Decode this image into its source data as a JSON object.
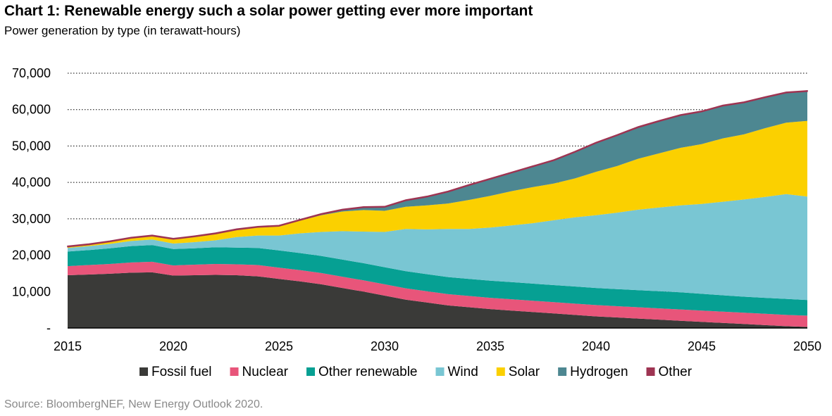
{
  "title": "Chart 1: Renewable energy such a solar power getting ever more important",
  "subtitle": "Power generation by type (in terawatt-hours)",
  "source": "Source: BloombergNEF, New Energy Outlook 2020.",
  "chart_data": {
    "type": "area",
    "stacked": true,
    "ylim": [
      0,
      70000
    ],
    "y_ticks": [
      0,
      10000,
      20000,
      30000,
      40000,
      50000,
      60000,
      70000
    ],
    "y_tick_labels": [
      "-",
      "10,000",
      "20,000",
      "30,000",
      "40,000",
      "50,000",
      "60,000",
      "70,000"
    ],
    "x_ticks": [
      2015,
      2020,
      2025,
      2030,
      2035,
      2040,
      2045,
      2050
    ],
    "x_tick_labels": [
      "2015",
      "2020",
      "2025",
      "2030",
      "2035",
      "2040",
      "2045",
      "2050"
    ],
    "grid": "horizontal dotted",
    "legend_position": "bottom",
    "x": [
      2015,
      2016,
      2017,
      2018,
      2019,
      2020,
      2021,
      2022,
      2023,
      2024,
      2025,
      2026,
      2027,
      2028,
      2029,
      2030,
      2031,
      2032,
      2033,
      2034,
      2035,
      2036,
      2037,
      2038,
      2039,
      2040,
      2041,
      2042,
      2043,
      2044,
      2045,
      2046,
      2047,
      2048,
      2049,
      2050
    ],
    "series": [
      {
        "name": "Fossil fuel",
        "color": "#3a3a38",
        "values": [
          14500,
          14700,
          14900,
          15200,
          15300,
          14400,
          14500,
          14600,
          14500,
          14200,
          13500,
          12800,
          12000,
          11000,
          10000,
          8900,
          7800,
          7000,
          6200,
          5700,
          5200,
          4800,
          4400,
          4000,
          3600,
          3200,
          2900,
          2600,
          2300,
          2000,
          1700,
          1400,
          1100,
          800,
          500,
          300
        ]
      },
      {
        "name": "Nuclear",
        "color": "#e8557a",
        "values": [
          2500,
          2600,
          2700,
          2800,
          2900,
          2800,
          2900,
          3000,
          3000,
          3100,
          3100,
          3100,
          3100,
          3100,
          3100,
          3100,
          3100,
          3100,
          3100,
          3100,
          3100,
          3100,
          3100,
          3100,
          3100,
          3100,
          3100,
          3100,
          3100,
          3100,
          3100,
          3100,
          3100,
          3100,
          3100,
          3100
        ]
      },
      {
        "name": "Other renewable",
        "color": "#06a093",
        "values": [
          4000,
          4100,
          4300,
          4500,
          4600,
          4500,
          4500,
          4600,
          4600,
          4700,
          4700,
          4700,
          4700,
          4700,
          4700,
          4700,
          4700,
          4700,
          4700,
          4700,
          4700,
          4700,
          4700,
          4700,
          4700,
          4700,
          4700,
          4700,
          4700,
          4700,
          4600,
          4500,
          4400,
          4400,
          4400,
          4300
        ]
      },
      {
        "name": "Wind",
        "color": "#79c6d3",
        "values": [
          1000,
          1100,
          1200,
          1400,
          1500,
          1500,
          1700,
          1900,
          2900,
          3400,
          4100,
          5400,
          6600,
          7800,
          8700,
          9700,
          11600,
          12300,
          13200,
          13700,
          14600,
          15600,
          16600,
          17800,
          19000,
          20000,
          21000,
          22100,
          23000,
          23900,
          24700,
          25700,
          26700,
          27700,
          28800,
          28400
        ]
      },
      {
        "name": "Solar",
        "color": "#fbd000",
        "values": [
          300,
          400,
          600,
          800,
          1000,
          1200,
          1500,
          1800,
          2000,
          2300,
          2600,
          3500,
          4600,
          5400,
          5900,
          5800,
          6100,
          6600,
          7000,
          8000,
          8700,
          9400,
          9900,
          10100,
          10700,
          11900,
          12800,
          14000,
          14900,
          15800,
          16400,
          17400,
          17900,
          18900,
          19600,
          20800
        ]
      },
      {
        "name": "Hydrogen",
        "color": "#4d8791",
        "values": [
          0,
          0,
          0,
          0,
          0,
          0,
          0,
          0,
          0,
          0,
          0,
          100,
          200,
          400,
          700,
          1000,
          1700,
          2300,
          3200,
          4000,
          4600,
          5000,
          5600,
          6300,
          7200,
          7900,
          8400,
          8600,
          8800,
          8900,
          8900,
          8900,
          8700,
          8400,
          8200,
          8100
        ]
      },
      {
        "name": "Other",
        "color": "#9e3452",
        "values": [
          200,
          200,
          200,
          200,
          200,
          200,
          200,
          200,
          200,
          200,
          200,
          200,
          200,
          200,
          200,
          200,
          200,
          200,
          200,
          200,
          200,
          200,
          200,
          200,
          200,
          200,
          200,
          200,
          200,
          200,
          200,
          200,
          200,
          200,
          200,
          200
        ]
      }
    ]
  }
}
